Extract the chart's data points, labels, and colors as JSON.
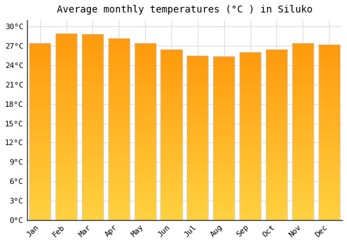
{
  "title": "Average monthly temperatures (°C ) in Siluko",
  "months": [
    "Jan",
    "Feb",
    "Mar",
    "Apr",
    "May",
    "Jun",
    "Jul",
    "Aug",
    "Sep",
    "Oct",
    "Nov",
    "Dec"
  ],
  "values": [
    27.5,
    29.0,
    28.9,
    28.2,
    27.5,
    26.5,
    25.5,
    25.4,
    26.0,
    26.5,
    27.5,
    27.2
  ],
  "bar_color_top": "#FFA500",
  "bar_color_bottom": "#FFD060",
  "bar_edge_color": "#CCCCCC",
  "background_color": "#FFFFFF",
  "grid_color": "#DDDDDD",
  "title_fontsize": 10,
  "tick_fontsize": 8,
  "ylim": [
    0,
    31
  ],
  "ytick_step": 3
}
